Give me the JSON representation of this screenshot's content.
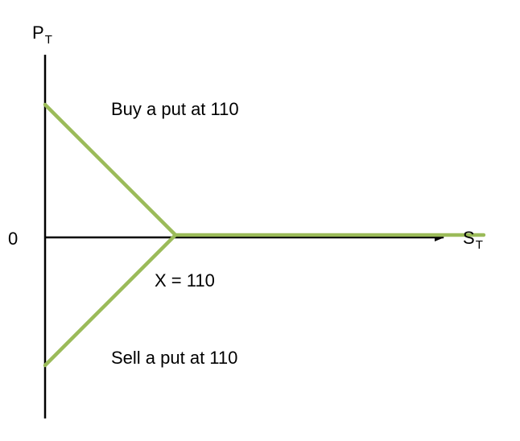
{
  "axes": {
    "y_label_main": "P",
    "y_label_sub": "T",
    "x_label_main": "S",
    "x_label_sub": "T",
    "origin_label": "0"
  },
  "annotations": {
    "buy_put": "Buy a put at 110",
    "sell_put": "Sell a put at 110",
    "strike": "X = 110"
  },
  "colors": {
    "payoff_line": "#9bbb59",
    "axis": "#000000"
  },
  "payoff": {
    "strike": 110,
    "long_put": [
      {
        "S": 0,
        "P": 110
      },
      {
        "S": 110,
        "P": 0
      },
      {
        "S": 370,
        "P": 0
      }
    ],
    "short_put": [
      {
        "S": 0,
        "P": -110
      },
      {
        "S": 110,
        "P": 0
      }
    ]
  }
}
